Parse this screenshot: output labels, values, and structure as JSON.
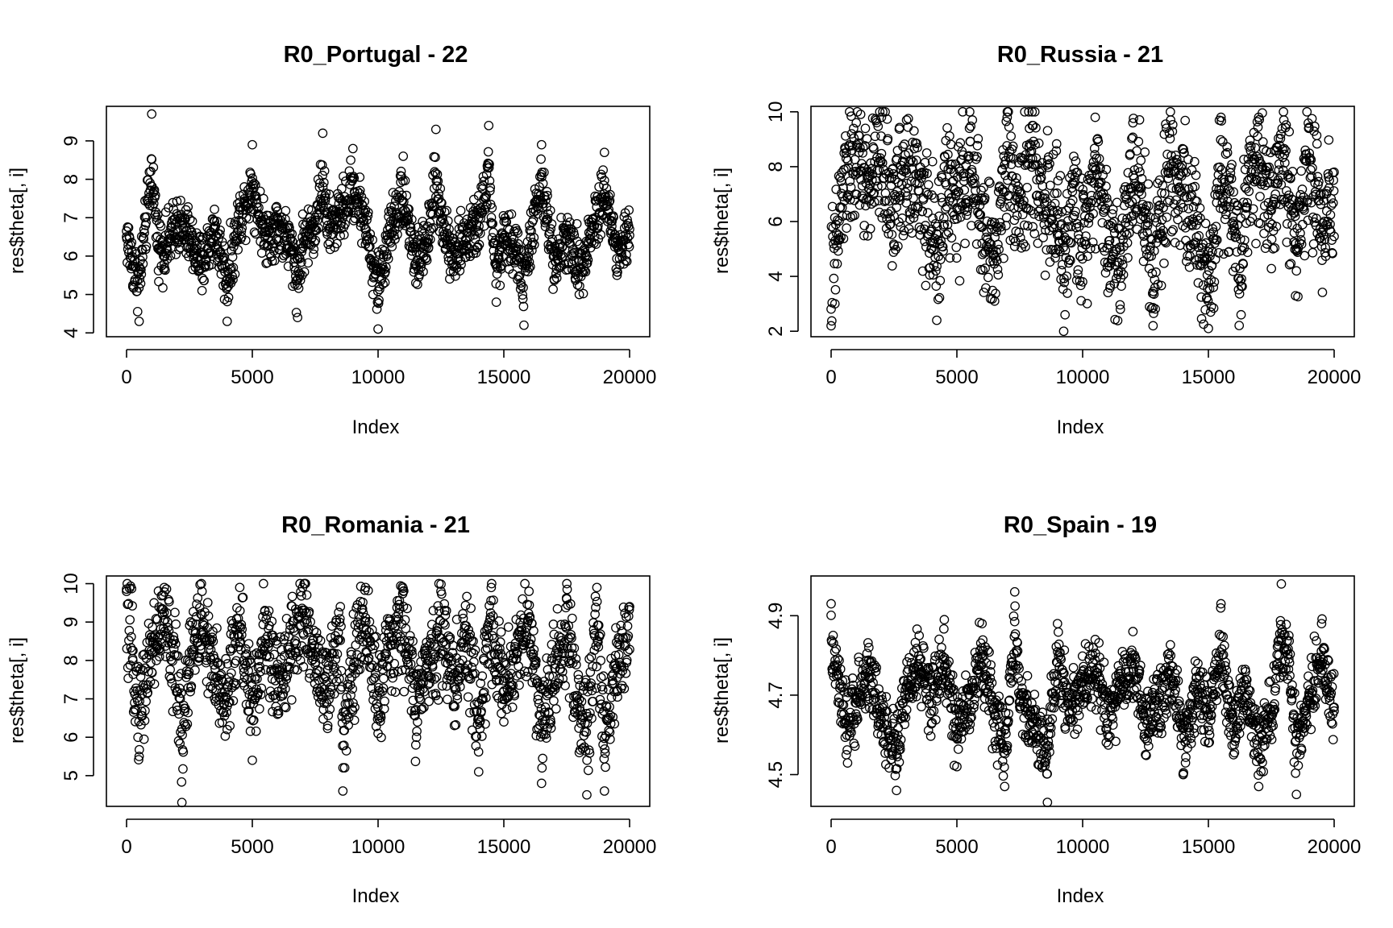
{
  "chart_data": [
    {
      "type": "scatter",
      "title": "R0_Portugal - 22",
      "xlabel": "Index",
      "ylabel": "res$theta[, i]",
      "xlim": [
        0,
        20000
      ],
      "ylim": [
        3.9,
        9.9
      ],
      "xticks": [
        0,
        5000,
        10000,
        15000,
        20000
      ],
      "xtick_labels": [
        "0",
        "5000",
        "10000",
        "15000",
        "20000"
      ],
      "yticks": [
        4,
        5,
        6,
        7,
        8,
        9
      ],
      "ytick_labels": [
        "4",
        "5",
        "6",
        "7",
        "8",
        "9"
      ],
      "series": [
        {
          "x": [
            0,
            250,
            500,
            750,
            1000,
            1250,
            1500,
            2000,
            2500,
            3000,
            3500,
            4000,
            4500,
            5000,
            5500,
            6000,
            6500,
            6800,
            7000,
            7500,
            7800,
            8000,
            8500,
            9000,
            9500,
            9800,
            10000,
            10500,
            11000,
            11500,
            12000,
            12300,
            12500,
            13000,
            13500,
            14000,
            14400,
            14700,
            15000,
            15500,
            15800,
            16000,
            16500,
            17000,
            17500,
            18000,
            18500,
            19000,
            19300,
            19500,
            20000
          ],
          "y": [
            6.5,
            5.2,
            4.3,
            6.8,
            9.7,
            6.2,
            5.8,
            7.1,
            6.4,
            5.1,
            6.9,
            4.3,
            7.4,
            8.9,
            6.5,
            7.0,
            6.1,
            4.4,
            6.2,
            7.0,
            9.2,
            6.8,
            7.5,
            8.8,
            7.2,
            5.0,
            4.1,
            6.9,
            8.6,
            5.3,
            6.2,
            9.3,
            7.4,
            5.6,
            6.4,
            7.0,
            9.4,
            4.8,
            6.3,
            5.9,
            4.2,
            6.1,
            8.9,
            5.4,
            6.4,
            5.0,
            6.8,
            8.7,
            6.9,
            5.5,
            6.7
          ]
        }
      ],
      "density": {
        "center": 6.55,
        "spread": 0.75,
        "lo": 4.1,
        "hi": 9.8
      }
    },
    {
      "type": "scatter",
      "title": "R0_Russia - 21",
      "xlabel": "Index",
      "ylabel": "res$theta[, i]",
      "xlim": [
        0,
        20000
      ],
      "ylim": [
        1.8,
        10.2
      ],
      "xticks": [
        0,
        5000,
        10000,
        15000,
        20000
      ],
      "xtick_labels": [
        "0",
        "5000",
        "10000",
        "15000",
        "20000"
      ],
      "yticks": [
        2,
        4,
        6,
        8,
        10
      ],
      "ytick_labels": [
        "2",
        "4",
        "6",
        "8",
        "10"
      ],
      "series": [
        {
          "x": [
            0,
            150,
            300,
            600,
            1000,
            1500,
            2000,
            2500,
            3000,
            3500,
            4000,
            4200,
            4500,
            5000,
            5500,
            6000,
            6500,
            7000,
            7500,
            8000,
            8500,
            9000,
            9300,
            9600,
            10000,
            10500,
            11000,
            11500,
            12000,
            12500,
            12800,
            13000,
            13500,
            14000,
            14500,
            15000,
            15200,
            15500,
            16000,
            16300,
            16500,
            17000,
            17500,
            18000,
            18500,
            19000,
            19500,
            20000
          ],
          "y": [
            2.2,
            3.0,
            5.5,
            8.5,
            9.6,
            7.8,
            9.8,
            6.2,
            9.7,
            7.4,
            5.0,
            2.4,
            8.0,
            6.5,
            9.4,
            5.2,
            3.1,
            9.8,
            6.8,
            9.5,
            7.0,
            5.5,
            2.6,
            7.4,
            3.8,
            9.8,
            4.5,
            2.8,
            9.6,
            6.1,
            2.2,
            5.4,
            9.7,
            7.8,
            4.6,
            2.1,
            3.6,
            9.8,
            6.0,
            2.6,
            7.2,
            9.8,
            6.4,
            9.7,
            4.2,
            9.4,
            5.6,
            7.8
          ]
        }
      ],
      "density": {
        "center": 6.5,
        "spread": 2.3,
        "lo": 2.0,
        "hi": 10.0
      }
    },
    {
      "type": "scatter",
      "title": "R0_Romania - 21",
      "xlabel": "Index",
      "ylabel": "res$theta[, i]",
      "xlim": [
        0,
        20000
      ],
      "ylim": [
        4.2,
        10.2
      ],
      "xticks": [
        0,
        5000,
        10000,
        15000,
        20000
      ],
      "xtick_labels": [
        "0",
        "5000",
        "10000",
        "15000",
        "20000"
      ],
      "yticks": [
        5,
        6,
        7,
        8,
        9,
        10
      ],
      "ytick_labels": [
        "5",
        "6",
        "7",
        "8",
        "9",
        "10"
      ],
      "series": [
        {
          "x": [
            0,
            250,
            500,
            1000,
            1500,
            2000,
            2200,
            2500,
            3000,
            3500,
            4000,
            4500,
            5000,
            5500,
            6000,
            6500,
            7000,
            7500,
            8000,
            8500,
            8600,
            9000,
            9500,
            10000,
            10500,
            11000,
            11500,
            12000,
            12500,
            13000,
            13500,
            14000,
            14500,
            15000,
            15500,
            16000,
            16500,
            17000,
            17500,
            18000,
            18300,
            18700,
            19000,
            19500,
            20000
          ],
          "y": [
            9.8,
            8.0,
            5.5,
            8.6,
            9.9,
            7.2,
            4.3,
            8.2,
            9.8,
            7.0,
            6.2,
            9.9,
            5.4,
            9.3,
            6.6,
            8.8,
            9.9,
            8.1,
            6.3,
            9.4,
            4.6,
            7.8,
            9.9,
            6.1,
            8.4,
            9.8,
            5.8,
            7.6,
            9.8,
            6.8,
            8.9,
            5.1,
            9.9,
            6.4,
            8.2,
            9.8,
            4.8,
            7.3,
            9.6,
            5.6,
            4.5,
            9.9,
            4.6,
            7.8,
            9.4
          ]
        }
      ],
      "density": {
        "center": 8.05,
        "spread": 1.25,
        "lo": 4.3,
        "hi": 10.0
      }
    },
    {
      "type": "scatter",
      "title": "R0_Spain - 19",
      "xlabel": "Index",
      "ylabel": "res$theta[, i]",
      "xlim": [
        0,
        20000
      ],
      "ylim": [
        4.42,
        5.0
      ],
      "xticks": [
        0,
        5000,
        10000,
        15000,
        20000
      ],
      "xtick_labels": [
        "0",
        "5000",
        "10000",
        "15000",
        "20000"
      ],
      "yticks": [
        4.5,
        4.7,
        4.9
      ],
      "ytick_labels": [
        "4.5",
        "4.7",
        "4.9"
      ],
      "series": [
        {
          "x": [
            0,
            300,
            600,
            1000,
            1500,
            2000,
            2600,
            3000,
            3500,
            4000,
            4500,
            5000,
            5500,
            6000,
            6500,
            6900,
            7300,
            7500,
            8000,
            8600,
            9000,
            9500,
            10000,
            10500,
            11000,
            11500,
            12000,
            12500,
            13000,
            13500,
            14000,
            14500,
            15000,
            15500,
            15800,
            16000,
            16500,
            17000,
            17500,
            17900,
            18200,
            18500,
            19000,
            19500,
            20000
          ],
          "y": [
            4.93,
            4.75,
            4.55,
            4.68,
            4.82,
            4.6,
            4.46,
            4.72,
            4.85,
            4.66,
            4.89,
            4.52,
            4.7,
            4.88,
            4.62,
            4.47,
            4.96,
            4.7,
            4.58,
            4.43,
            4.88,
            4.64,
            4.76,
            4.84,
            4.6,
            4.72,
            4.86,
            4.55,
            4.68,
            4.8,
            4.5,
            4.73,
            4.58,
            4.93,
            4.65,
            4.55,
            4.74,
            4.47,
            4.62,
            4.98,
            4.85,
            4.45,
            4.7,
            4.88,
            4.66
          ]
        }
      ],
      "density": {
        "center": 4.69,
        "spread": 0.085,
        "lo": 4.44,
        "hi": 4.99
      }
    }
  ]
}
